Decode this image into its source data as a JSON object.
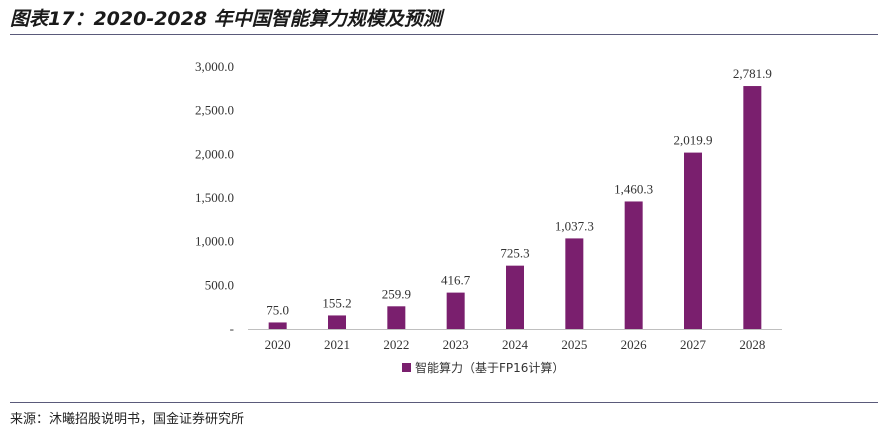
{
  "figure": {
    "title": "图表17：2020-2028 年中国智能算力规模及预测",
    "source": "来源：沐曦招股说明书，国金证券研究所"
  },
  "colors": {
    "bar": "#7a1f6e",
    "rule": "#5a5a7a"
  },
  "chart_data": {
    "type": "bar",
    "title": "",
    "categories": [
      "2020",
      "2021",
      "2022",
      "2023",
      "2024",
      "2025",
      "2026",
      "2027",
      "2028"
    ],
    "series": [
      {
        "name": "智能算力（基于FP16计算）",
        "values": [
          75.0,
          155.2,
          259.9,
          416.7,
          725.3,
          1037.3,
          1460.3,
          2019.9,
          2781.9
        ],
        "labels": [
          "75.0",
          "155.2",
          "259.9",
          "416.7",
          "725.3",
          "1,037.3",
          "1,460.3",
          "2,019.9",
          "2,781.9"
        ]
      }
    ],
    "yticks": [
      0,
      500,
      1000,
      1500,
      2000,
      2500,
      3000
    ],
    "ytick_labels": [
      "-",
      "500.0",
      "1,000.0",
      "1,500.0",
      "2,000.0",
      "2,500.0",
      "3,000.0"
    ],
    "ylim": [
      0,
      3000
    ],
    "xlabel": "",
    "ylabel": "",
    "grid": false,
    "legend": "bottom-center"
  }
}
